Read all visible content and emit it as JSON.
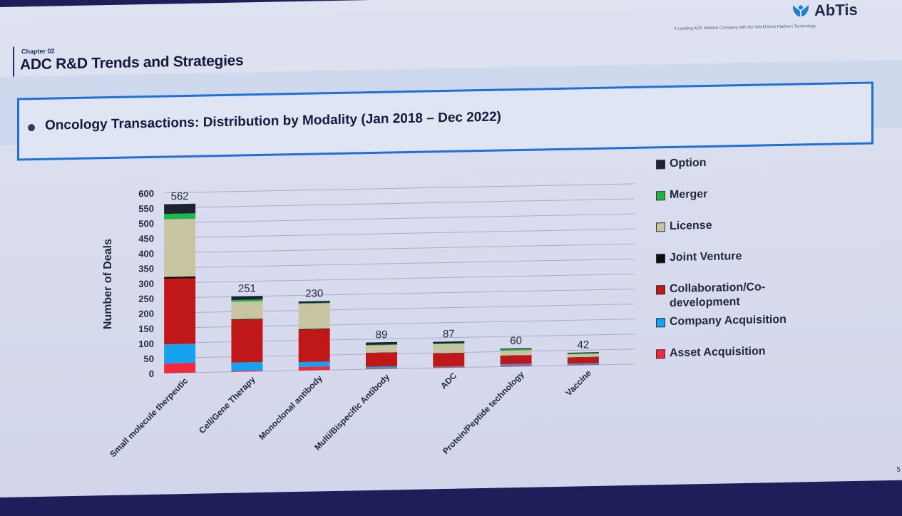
{
  "header": {
    "chapter": "Chapter 02",
    "title": "ADC R&D Trends and Strategies",
    "logo_text": "AbTis",
    "tagline": "A Leading ADC Biotech Company with the World Best Platform Technology"
  },
  "subtitle": "Oncology Transactions: Distribution by Modality (Jan 2018 – Dec 2022)",
  "corner_digit": "5",
  "colors": {
    "option": "#1c2431",
    "merger": "#1fb64a",
    "license": "#c8c4a2",
    "joint_venture": "#0d0d0d",
    "collaboration": "#c01818",
    "company_acquisition": "#16a2ef",
    "asset_acquisition": "#f2283c"
  },
  "legend": [
    {
      "label": "Option",
      "color": "#1c2431"
    },
    {
      "label": "Merger",
      "color": "#1fb64a"
    },
    {
      "label": "License",
      "color": "#c8c4a2"
    },
    {
      "label": "Joint Venture",
      "color": "#0d0d0d"
    },
    {
      "label": "Collaboration/Co-development",
      "color": "#c01818"
    },
    {
      "label": "Company Acquisition",
      "color": "#16a2ef"
    },
    {
      "label": "Asset Acquisition",
      "color": "#f2283c"
    }
  ],
  "chart_data": {
    "type": "bar",
    "stacked": true,
    "ylabel": "Number of Deals",
    "xlabel": "",
    "ylim": [
      0,
      600
    ],
    "yticks": [
      0,
      50,
      100,
      150,
      200,
      250,
      300,
      350,
      400,
      450,
      500,
      550,
      600
    ],
    "grid": true,
    "legend_position": "right",
    "categories": [
      "Small molecule therpeutic",
      "Cell/Gene Therapy",
      "Monoclonal antibody",
      "Multi/Bispecific Antibody",
      "ADC",
      "Protein/Peptide technology",
      "Vaccine"
    ],
    "totals": [
      562,
      251,
      230,
      89,
      87,
      60,
      42
    ],
    "series": [
      {
        "name": "Asset Acquisition",
        "color": "#f2283c",
        "values": [
          32,
          3,
          12,
          2,
          2,
          3,
          2
        ]
      },
      {
        "name": "Company Acquisition",
        "color": "#16a2ef",
        "values": [
          64,
          28,
          16,
          6,
          2,
          5,
          4
        ]
      },
      {
        "name": "Collaboration/Co-development",
        "color": "#c01818",
        "values": [
          218,
          142,
          108,
          46,
          44,
          28,
          20
        ]
      },
      {
        "name": "Joint Venture",
        "color": "#0d0d0d",
        "values": [
          6,
          2,
          2,
          1,
          1,
          1,
          1
        ]
      },
      {
        "name": "License",
        "color": "#c8c4a2",
        "values": [
          192,
          58,
          84,
          24,
          30,
          16,
          10
        ]
      },
      {
        "name": "Merger",
        "color": "#1fb64a",
        "values": [
          18,
          6,
          2,
          2,
          2,
          4,
          2
        ]
      },
      {
        "name": "Option",
        "color": "#1c2431",
        "values": [
          32,
          12,
          6,
          8,
          6,
          3,
          3
        ]
      }
    ]
  }
}
